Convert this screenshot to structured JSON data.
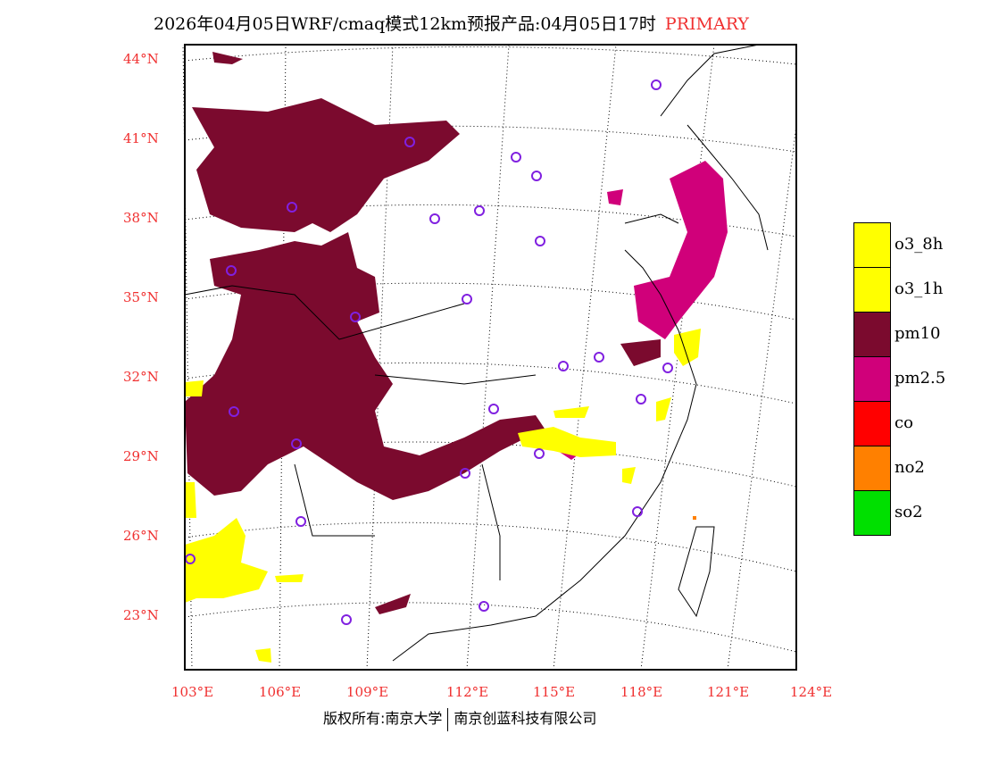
{
  "title": {
    "text": "2026年04月05日WRF/cmaq模式12km预报产品:04月05日17时",
    "tag": "PRIMARY"
  },
  "lat_labels": [
    "44°N",
    "41°N",
    "38°N",
    "35°N",
    "32°N",
    "29°N",
    "26°N",
    "23°N"
  ],
  "lon_labels": [
    "103°E",
    "106°E",
    "109°E",
    "112°E",
    "115°E",
    "118°E",
    "121°E",
    "124°E"
  ],
  "legend": [
    {
      "label": "o3_8h",
      "color": "#ffff00"
    },
    {
      "label": "o3_1h",
      "color": "#ffff00"
    },
    {
      "label": "pm10",
      "color": "#7b0a2e"
    },
    {
      "label": "pm2.5",
      "color": "#d0007a"
    },
    {
      "label": "co",
      "color": "#ff0000"
    },
    {
      "label": "no2",
      "color": "#ff8000"
    },
    {
      "label": "so2",
      "color": "#00e000"
    }
  ],
  "footer": {
    "left": "版权所有:南京大学",
    "right": "南京创蓝科技有限公司"
  }
}
